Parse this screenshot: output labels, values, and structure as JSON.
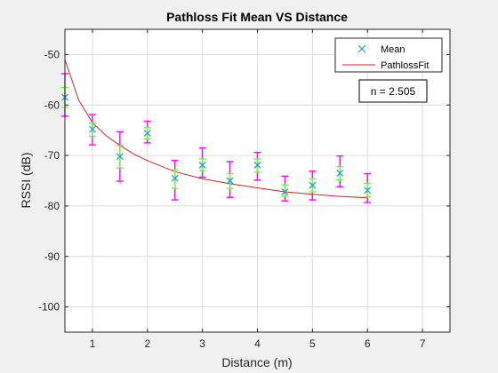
{
  "chart_data": {
    "type": "scatter",
    "title": "Pathloss Fit Mean VS Distance",
    "xlabel": "Distance (m)",
    "ylabel": "RSSI (dB)",
    "xlim": [
      0.5,
      7.5
    ],
    "ylim": [
      -105,
      -45
    ],
    "xticks": [
      1,
      2,
      3,
      4,
      5,
      6,
      7
    ],
    "yticks": [
      -100,
      -90,
      -80,
      -70,
      -60,
      -50
    ],
    "xtick_labels": [
      "1",
      "2",
      "3",
      "4",
      "5",
      "6",
      "7"
    ],
    "ytick_labels": [
      "-100",
      "-90",
      "-80",
      "-70",
      "-60",
      "-50"
    ],
    "grid": true,
    "legend_position": "top-right",
    "annotation": "n = 2.505",
    "series": [
      {
        "name": "Mean",
        "marker": "x",
        "color": "#1f9fd0",
        "x": [
          0.5,
          1.0,
          1.5,
          2.0,
          2.5,
          3.0,
          3.5,
          4.0,
          4.5,
          5.0,
          5.5,
          6.0
        ],
        "y": [
          -58.5,
          -64.8,
          -70.2,
          -65.6,
          -74.5,
          -71.9,
          -75.0,
          -71.9,
          -77.2,
          -75.9,
          -73.5,
          -76.9
        ],
        "outer_err_low": [
          -62.2,
          -67.9,
          -75.1,
          -67.5,
          -78.8,
          -74.3,
          -78.3,
          -74.9,
          -79.0,
          -78.8,
          -76.2,
          -79.3
        ],
        "outer_err_high": [
          -53.8,
          -61.9,
          -65.3,
          -63.2,
          -71.0,
          -68.5,
          -71.2,
          -69.4,
          -74.1,
          -73.1,
          -70.1,
          -73.6
        ],
        "inner_err_low": [
          -60.5,
          -66.2,
          -72.5,
          -66.7,
          -76.5,
          -73.0,
          -76.5,
          -73.3,
          -78.1,
          -77.2,
          -74.8,
          -78.2
        ],
        "inner_err_high": [
          -56.5,
          -63.5,
          -68.0,
          -64.5,
          -72.8,
          -70.7,
          -73.6,
          -70.7,
          -75.8,
          -74.6,
          -72.2,
          -75.5
        ]
      },
      {
        "name": "PathlossFit",
        "type": "line",
        "color": "#d62020",
        "n": 2.505,
        "x": [
          0.5,
          0.75,
          1.0,
          1.25,
          1.5,
          1.75,
          2.0,
          2.5,
          3.0,
          3.5,
          4.0,
          4.5,
          5.0,
          5.5,
          6.0
        ],
        "y": [
          -51.0,
          -59.0,
          -63.5,
          -66.1,
          -68.0,
          -69.7,
          -71.0,
          -73.2,
          -74.6,
          -75.6,
          -76.4,
          -77.2,
          -77.7,
          -78.1,
          -78.4
        ]
      }
    ],
    "colors": {
      "outer_error": "#ff00ff",
      "inner_error": "#66ff33",
      "mean_marker": "#1f9fd0",
      "fit_line": "#d62020"
    }
  }
}
